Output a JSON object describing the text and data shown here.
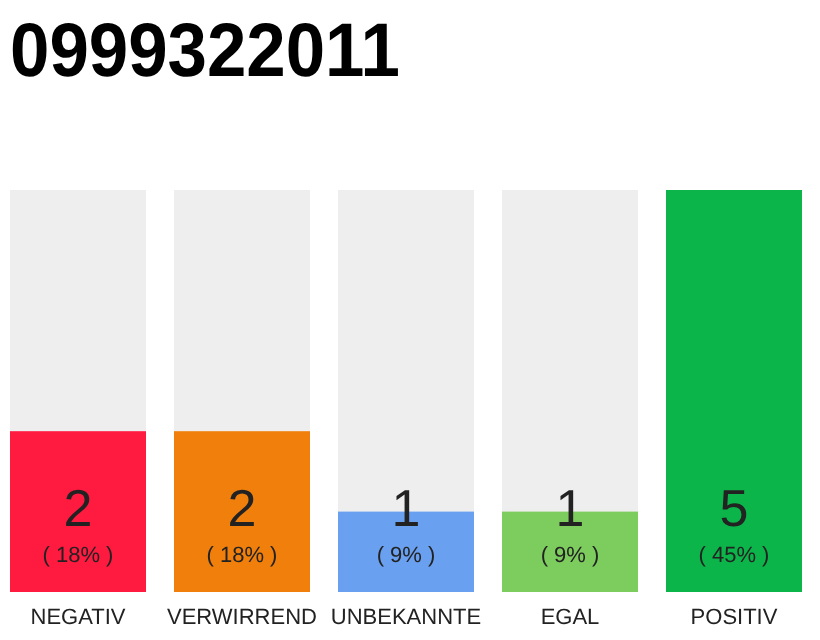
{
  "chart_data": {
    "type": "bar",
    "title": "0999322011",
    "categories": [
      "NEGATIV",
      "VERWIRREND",
      "UNBEKANNTE",
      "EGAL",
      "POSITIV"
    ],
    "values": [
      2,
      2,
      1,
      1,
      5
    ],
    "colors": [
      "#ff1a40",
      "#f07f0c",
      "#6aa0f0",
      "#7dcc5e",
      "#0bb54a"
    ],
    "ylim": [
      0,
      5
    ],
    "tick_labels": "x",
    "data_labels": true,
    "annotations": [
      "( 18% )",
      "( 18% )",
      "( 9% )",
      "( 9% )",
      "( 45% )"
    ]
  }
}
